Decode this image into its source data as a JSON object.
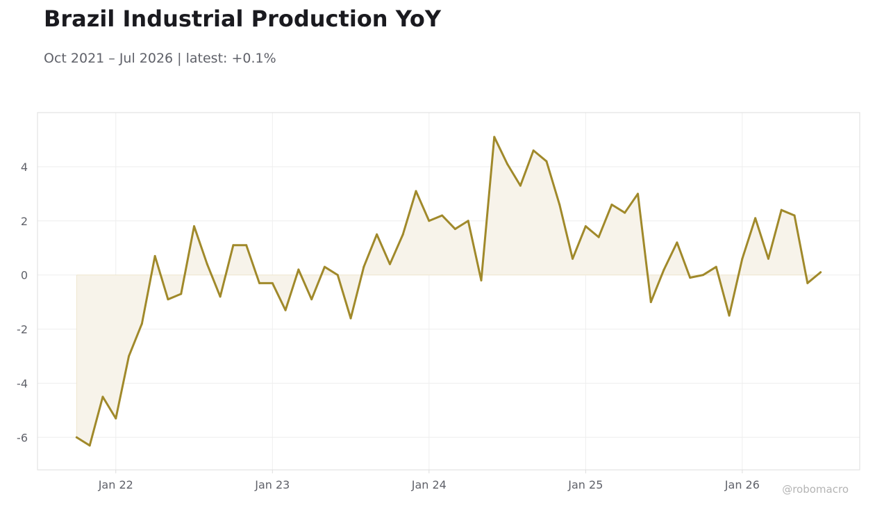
{
  "title": "Brazil Industrial Production YoY",
  "subtitle": "Oct 2021 – Jul 2026 | latest: +0.1%",
  "watermark": "@robomacro",
  "colors": {
    "line": "#a0892a",
    "fill": "#f7f3ea",
    "grid": "#eeeeee",
    "frame": "#dddddd",
    "text": "#5f6169"
  },
  "chart_data": {
    "type": "area",
    "title": "Brazil Industrial Production YoY",
    "subtitle": "Oct 2021 – Jul 2026 | latest: +0.1%",
    "xlabel": "",
    "ylabel": "",
    "grid": true,
    "legend": "none",
    "x_range": [
      "2021-07",
      "2026-10"
    ],
    "ylim": [
      -7.2,
      6
    ],
    "y_ticks": [
      4,
      2,
      0,
      -2,
      -4,
      -6
    ],
    "y_tick_labels": [
      "4",
      "2",
      "0",
      "-2",
      "-4",
      "-6"
    ],
    "x_ticks": [
      "2022-01",
      "2023-01",
      "2024-01",
      "2025-01",
      "2026-01"
    ],
    "x_tick_labels": [
      "Jan 22",
      "Jan 23",
      "Jan 24",
      "Jan 25",
      "Jan 26"
    ],
    "x": [
      "2021-10",
      "2021-11",
      "2021-12",
      "2022-01",
      "2022-02",
      "2022-03",
      "2022-04",
      "2022-05",
      "2022-06",
      "2022-07",
      "2022-08",
      "2022-09",
      "2022-10",
      "2022-11",
      "2022-12",
      "2023-01",
      "2023-02",
      "2023-03",
      "2023-04",
      "2023-05",
      "2023-06",
      "2023-07",
      "2023-08",
      "2023-09",
      "2023-10",
      "2023-11",
      "2023-12",
      "2024-01",
      "2024-02",
      "2024-03",
      "2024-04",
      "2024-05",
      "2024-06",
      "2024-07",
      "2024-08",
      "2024-09",
      "2024-10",
      "2024-11",
      "2024-12",
      "2025-01",
      "2025-02",
      "2025-03",
      "2025-04",
      "2025-05",
      "2025-06",
      "2025-07",
      "2025-08",
      "2025-09",
      "2025-10",
      "2025-11",
      "2025-12",
      "2026-01",
      "2026-02",
      "2026-03",
      "2026-04",
      "2026-05",
      "2026-06",
      "2026-07"
    ],
    "series": [
      {
        "values": [
          -6.0,
          -6.3,
          -4.5,
          -5.3,
          -3.0,
          -1.8,
          0.7,
          -0.9,
          -0.7,
          1.8,
          0.4,
          -0.8,
          1.1,
          1.1,
          -0.3,
          -0.3,
          -1.3,
          0.2,
          -0.9,
          0.3,
          0.0,
          -1.6,
          0.3,
          1.5,
          0.4,
          1.5,
          3.1,
          2.0,
          2.2,
          1.7,
          2.0,
          -0.2,
          5.1,
          4.1,
          3.3,
          4.6,
          4.2,
          2.6,
          0.6,
          1.8,
          1.4,
          2.6,
          2.3,
          3.0,
          -1.0,
          0.2,
          1.2,
          -0.1,
          0.0,
          0.3,
          -1.5,
          0.6,
          2.1,
          0.6,
          2.4,
          2.2,
          -0.3,
          0.1
        ]
      }
    ]
  }
}
